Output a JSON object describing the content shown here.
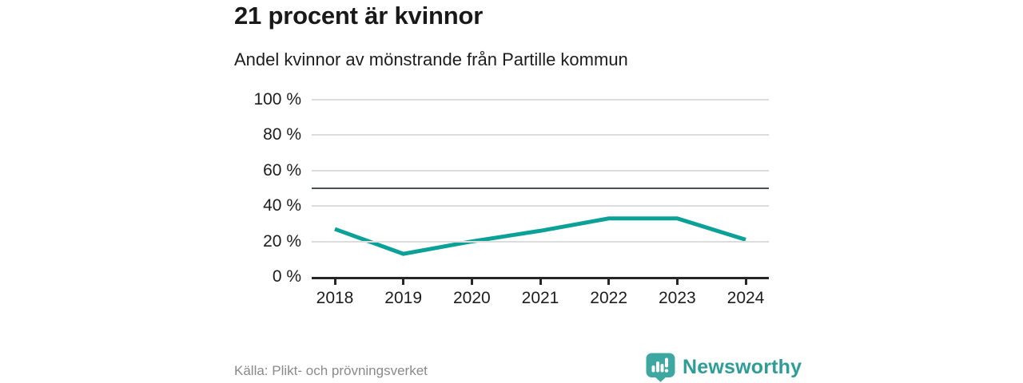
{
  "header": {
    "title": "21 procent är kvinnor",
    "subtitle": "Andel kvinnor av mönstrande från Partille kommun"
  },
  "chart_data": {
    "type": "line",
    "title": "21 procent är kvinnor",
    "subtitle": "Andel kvinnor av mönstrande från Partille kommun",
    "categories": [
      "2018",
      "2019",
      "2020",
      "2021",
      "2022",
      "2023",
      "2024"
    ],
    "series": [
      {
        "name": "Andel kvinnor av mönstrande",
        "values": [
          27,
          13,
          20,
          26,
          33,
          33,
          21
        ]
      }
    ],
    "unit": "%",
    "ylim": [
      0,
      100
    ],
    "yticks": [
      0,
      20,
      40,
      60,
      80,
      100
    ],
    "ytick_labels": [
      "0 %",
      "20 %",
      "40 %",
      "60 %",
      "80 %",
      "100 %"
    ],
    "reference_line": 50,
    "grid": true,
    "legend": "none",
    "line_color": "#0ba197",
    "reference_line_color": "#4a4f59"
  },
  "footer": {
    "source": "Källa: Plikt- och prövningsverket",
    "brand": "Newsworthy"
  },
  "icons": {
    "logo": "newsworthy-badge-bar-chart-icon"
  },
  "colors": {
    "accent_teal": "#0ba197",
    "brand_teal": "#2e9d97",
    "logo_badge_teal": "#3fa7a1",
    "title_text": "#191919",
    "muted_text": "#8a8a8a",
    "gridline": "#dcdcdc",
    "axis": "#262626"
  }
}
